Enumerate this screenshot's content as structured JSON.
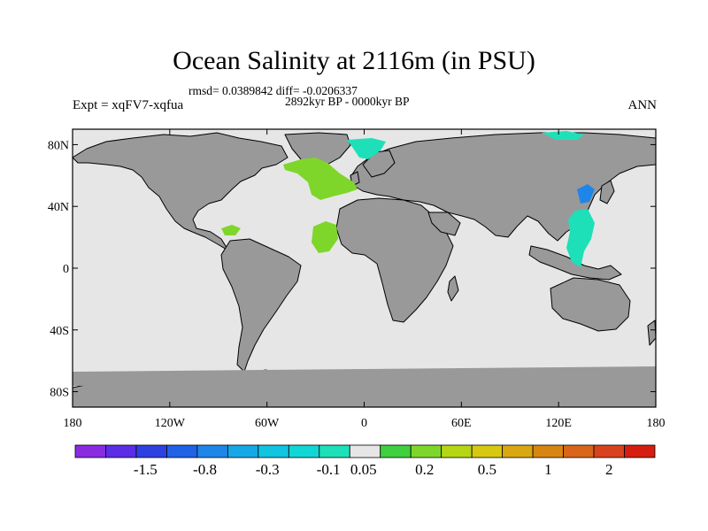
{
  "title": "Ocean Salinity at 2116m (in PSU)",
  "subtitle_stats": "rmsd= 0.0389842 diff= -0.0206337",
  "subtitle_period": "2892kyr BP - 0000kyr BP",
  "experiment_label": "Expt = xqFV7-xqfua",
  "season_label": "ANN",
  "colors": {
    "ocean_background": "#e6e6e6",
    "land": "#999999",
    "coast_outline": "#000000"
  },
  "axes": {
    "lon_labels": [
      "180",
      "120W",
      "60W",
      "0",
      "60E",
      "120E",
      "180"
    ],
    "lat_labels": [
      "80N",
      "40N",
      "0",
      "40S",
      "80S"
    ]
  },
  "colorbar": {
    "colors": [
      "#8a2be2",
      "#5b2de6",
      "#2f40e0",
      "#1f62e6",
      "#1e86e8",
      "#16a8e6",
      "#11c4e0",
      "#12d6d6",
      "#1de0b8",
      "#e6e6e6",
      "#3fcf3f",
      "#7fd62a",
      "#b5d615",
      "#d7c812",
      "#d8a712",
      "#d88612",
      "#d8651a",
      "#d8431e",
      "#d61e10"
    ],
    "labels": [
      "-1.5",
      "-0.8",
      "-0.3",
      "-0.1",
      "0.05",
      "0.2",
      "0.5",
      "1",
      "2"
    ]
  },
  "anomaly_patches": [
    {
      "name": "north-atlantic-positive",
      "color": "#7fd62a"
    },
    {
      "name": "tropical-atlantic-positive",
      "color": "#7fd62a"
    },
    {
      "name": "caribbean-positive",
      "color": "#7fd62a"
    },
    {
      "name": "nordic-seas-negative",
      "color": "#1de0b8"
    },
    {
      "name": "arctic-negative",
      "color": "#1de0b8"
    },
    {
      "name": "west-pacific-negative",
      "color": "#1de0b8"
    },
    {
      "name": "japan-sea-negative",
      "color": "#1e86e8"
    }
  ]
}
